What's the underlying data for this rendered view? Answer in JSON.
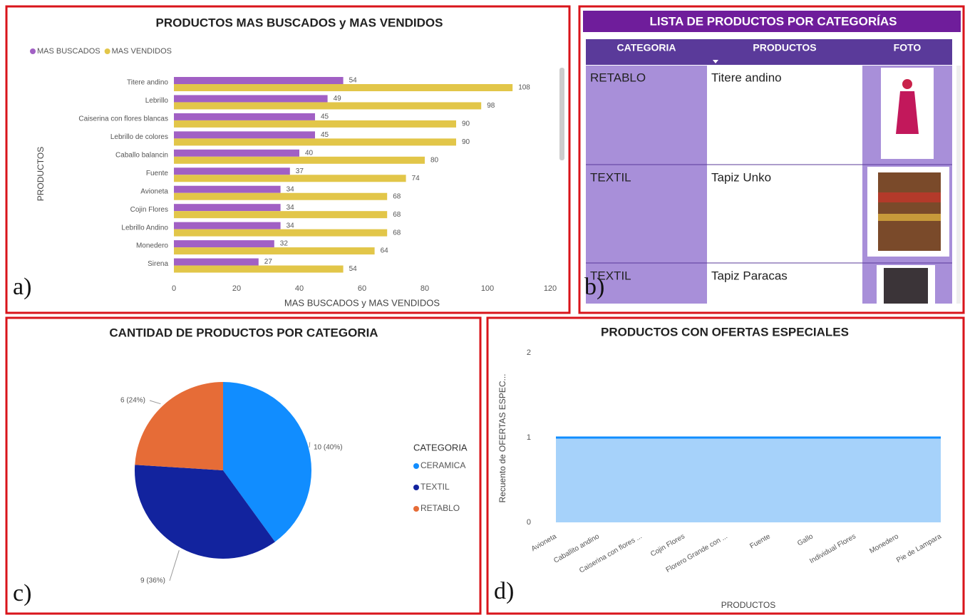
{
  "panel_labels": [
    "a)",
    "b)",
    "c)",
    "d)"
  ],
  "chart_data": [
    {
      "type": "hbar",
      "title": "PRODUCTOS MAS BUSCADOS y MAS VENDIDOS",
      "x_label": "MAS BUSCADOS y MAS VENDIDOS",
      "y_label": "PRODUCTOS",
      "categories": [
        "Titere andino",
        "Lebrillo",
        "Caiserina con flores blancas",
        "Lebrillo de colores",
        "Caballo balancin",
        "Fuente",
        "Avioneta",
        "Cojin Flores",
        "Lebrillo Andino",
        "Monedero",
        "Sirena"
      ],
      "series": [
        {
          "name": "MAS BUSCADOS",
          "color": "#a160c4",
          "values": [
            54,
            49,
            45,
            45,
            40,
            37,
            34,
            34,
            34,
            32,
            27
          ]
        },
        {
          "name": "MAS VENDIDOS",
          "color": "#e2c649",
          "values": [
            108,
            98,
            90,
            90,
            80,
            74,
            68,
            68,
            68,
            64,
            54
          ]
        }
      ],
      "xlim": [
        0,
        120
      ],
      "xticks": [
        0,
        20,
        40,
        60,
        80,
        100,
        120
      ],
      "legend": "top-left"
    },
    {
      "type": "pie",
      "title": "CANTIDAD DE PRODUCTOS POR CATEGORIA",
      "legend_title": "CATEGORIA",
      "categories": [
        "CERAMICA",
        "TEXTIL",
        "RETABLO"
      ],
      "values": [
        10,
        9,
        6
      ],
      "value_labels": [
        "10 (40%)",
        "9 (36%)",
        "6 (24%)"
      ],
      "colors": [
        "#118dff",
        "#12239e",
        "#e66c37"
      ],
      "legend": "right"
    },
    {
      "type": "area",
      "title": "PRODUCTOS CON OFERTAS ESPECIALES",
      "x_label": "PRODUCTOS",
      "y_label": "Recuento de OFERTAS ESPEC...",
      "categories": [
        "Avioneta",
        "Caballito andino",
        "Caiserina con flores ...",
        "Cojin Flores",
        "Florero Grande con ...",
        "Fuente",
        "Gallo",
        "Individual Flores",
        "Monedero",
        "Pie de Lampara"
      ],
      "values": [
        1,
        1,
        1,
        1,
        1,
        1,
        1,
        1,
        1,
        1
      ],
      "color": "#118dff",
      "fill": "#a6d2fa",
      "ylim": [
        0,
        2
      ],
      "yticks": [
        0,
        1,
        2
      ]
    }
  ],
  "table": {
    "title": "LISTA DE PRODUCTOS POR CATEGORÍAS",
    "columns": [
      "CATEGORIA",
      "PRODUCTOS",
      "FOTO"
    ],
    "rows": [
      [
        "RETABLO",
        "Titere andino"
      ],
      [
        "TEXTIL",
        "Tapiz Unko"
      ],
      [
        "TEXTIL",
        "Tapiz Paracas"
      ]
    ]
  }
}
